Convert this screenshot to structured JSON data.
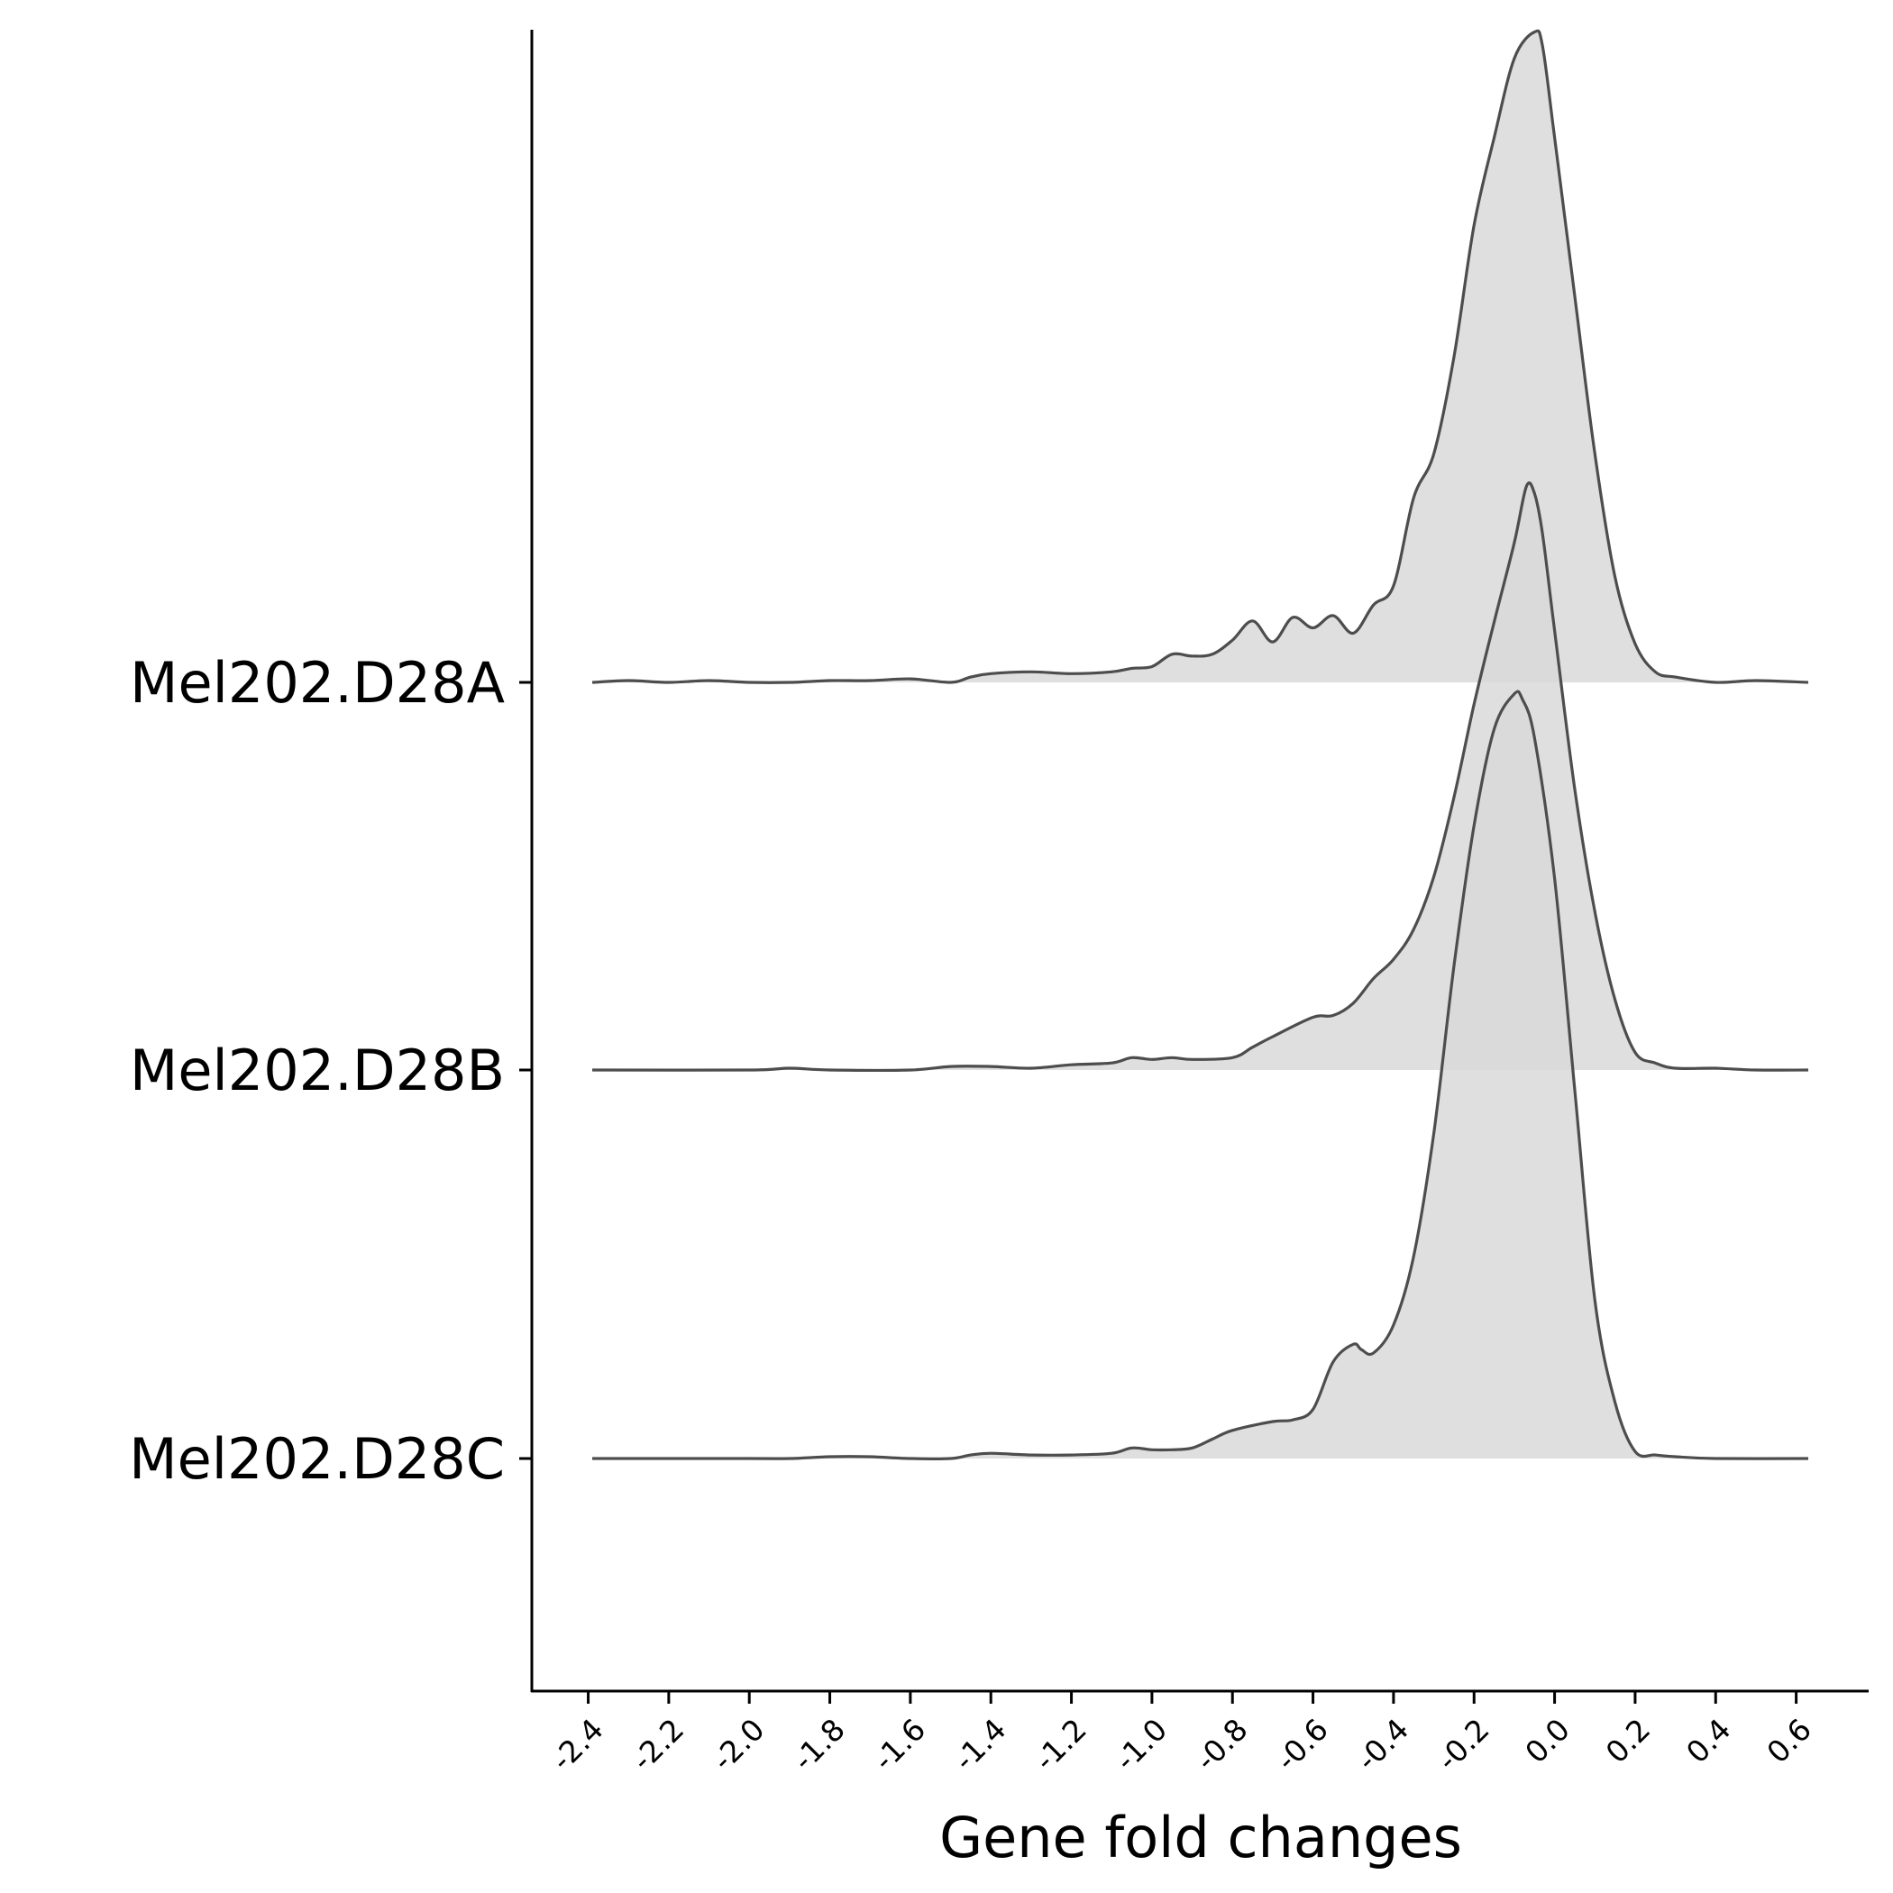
{
  "chart_data": {
    "type": "ridgeline",
    "xlabel": "Gene fold changes",
    "ylabel": "",
    "title": "",
    "xlim": [
      -2.54,
      0.78
    ],
    "xticks": [
      "-2.4",
      "-2.2",
      "-2.0",
      "-1.8",
      "-1.6",
      "-1.4",
      "-1.2",
      "-1.0",
      "-0.8",
      "-0.6",
      "-0.4",
      "-0.2",
      "0.0",
      "0.2",
      "0.4",
      "0.6"
    ],
    "colors": {
      "fill": "#d9d9d9",
      "line": "#4d4d4d",
      "axis": "#000000"
    },
    "series": [
      {
        "name": "Mel202.D28A",
        "x": [
          -2.39,
          -2.3,
          -2.2,
          -2.1,
          -2.0,
          -1.9,
          -1.8,
          -1.7,
          -1.6,
          -1.5,
          -1.45,
          -1.4,
          -1.3,
          -1.2,
          -1.1,
          -1.05,
          -1.0,
          -0.95,
          -0.9,
          -0.85,
          -0.8,
          -0.75,
          -0.7,
          -0.65,
          -0.6,
          -0.55,
          -0.5,
          -0.45,
          -0.4,
          -0.35,
          -0.3,
          -0.25,
          -0.2,
          -0.15,
          -0.1,
          -0.05,
          -0.03,
          0.0,
          0.05,
          0.1,
          0.15,
          0.2,
          0.25,
          0.3,
          0.4,
          0.5,
          0.63
        ],
        "y": [
          0.0,
          0.01,
          0.0,
          0.01,
          0.0,
          0.0,
          0.01,
          0.01,
          0.02,
          0.0,
          0.03,
          0.05,
          0.06,
          0.05,
          0.06,
          0.08,
          0.09,
          0.16,
          0.15,
          0.16,
          0.24,
          0.35,
          0.23,
          0.37,
          0.31,
          0.38,
          0.28,
          0.44,
          0.55,
          1.05,
          1.3,
          1.85,
          2.6,
          3.1,
          3.55,
          3.7,
          3.62,
          3.1,
          2.2,
          1.3,
          0.6,
          0.22,
          0.06,
          0.03,
          0.0,
          0.01,
          0.0
        ]
      },
      {
        "name": "Mel202.D28B",
        "x": [
          -2.39,
          -2.0,
          -1.9,
          -1.8,
          -1.6,
          -1.5,
          -1.4,
          -1.3,
          -1.2,
          -1.1,
          -1.05,
          -1.0,
          -0.95,
          -0.9,
          -0.8,
          -0.75,
          -0.7,
          -0.6,
          -0.55,
          -0.5,
          -0.45,
          -0.4,
          -0.35,
          -0.3,
          -0.25,
          -0.2,
          -0.15,
          -0.1,
          -0.07,
          -0.05,
          -0.03,
          0.0,
          0.05,
          0.1,
          0.15,
          0.2,
          0.25,
          0.3,
          0.4,
          0.5,
          0.63
        ],
        "y": [
          0.0,
          0.0,
          0.01,
          0.0,
          0.0,
          0.02,
          0.02,
          0.01,
          0.03,
          0.04,
          0.07,
          0.06,
          0.07,
          0.06,
          0.07,
          0.13,
          0.19,
          0.3,
          0.31,
          0.38,
          0.52,
          0.63,
          0.8,
          1.1,
          1.55,
          2.08,
          2.55,
          3.0,
          3.32,
          3.28,
          3.05,
          2.5,
          1.6,
          0.9,
          0.4,
          0.1,
          0.04,
          0.01,
          0.01,
          0.0,
          0.0
        ]
      },
      {
        "name": "Mel202.D28C",
        "x": [
          -2.39,
          -2.0,
          -1.9,
          -1.8,
          -1.7,
          -1.6,
          -1.5,
          -1.45,
          -1.4,
          -1.3,
          -1.2,
          -1.1,
          -1.05,
          -1.0,
          -0.95,
          -0.9,
          -0.85,
          -0.8,
          -0.7,
          -0.65,
          -0.6,
          -0.55,
          -0.5,
          -0.48,
          -0.45,
          -0.4,
          -0.35,
          -0.3,
          -0.25,
          -0.2,
          -0.15,
          -0.1,
          -0.08,
          -0.05,
          0.0,
          0.05,
          0.1,
          0.15,
          0.2,
          0.25,
          0.3,
          0.4,
          0.63
        ],
        "y": [
          0.0,
          0.0,
          0.0,
          0.01,
          0.01,
          0.0,
          0.0,
          0.02,
          0.03,
          0.02,
          0.02,
          0.03,
          0.06,
          0.05,
          0.05,
          0.06,
          0.11,
          0.16,
          0.21,
          0.22,
          0.28,
          0.55,
          0.65,
          0.62,
          0.6,
          0.76,
          1.15,
          1.85,
          2.8,
          3.6,
          4.15,
          4.35,
          4.32,
          4.1,
          3.3,
          2.1,
          0.9,
          0.32,
          0.04,
          0.02,
          0.01,
          0.0,
          0.0
        ]
      }
    ]
  }
}
